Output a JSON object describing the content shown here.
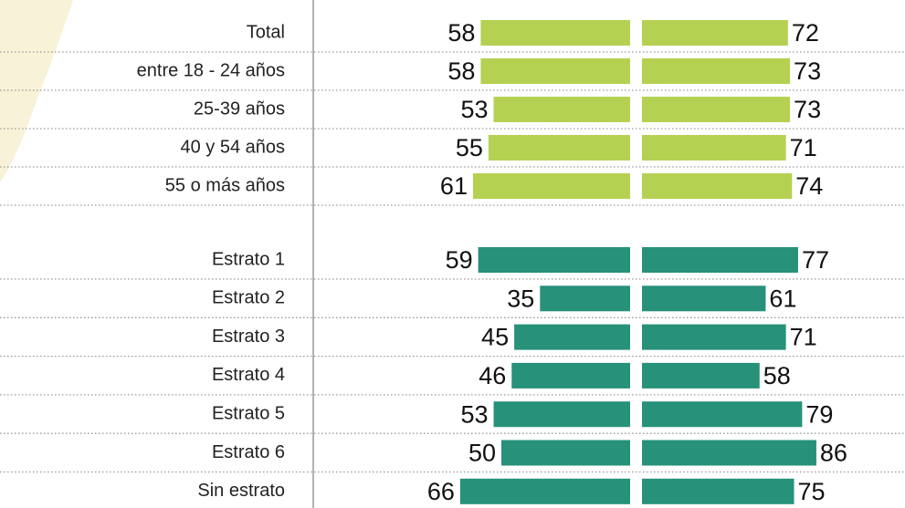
{
  "chart_data": [
    {
      "type": "paired-bar",
      "color": "#b5d152",
      "xlim": [
        0,
        100
      ],
      "categories": [
        "Total",
        "entre 18 - 24 años",
        "25-39 años",
        "40 y 54 años",
        "55 o más años"
      ],
      "series": [
        {
          "values": [
            58,
            58,
            53,
            55,
            61
          ]
        },
        {
          "values": [
            72,
            73,
            73,
            71,
            74
          ]
        }
      ]
    },
    {
      "type": "paired-bar",
      "color": "#27917a",
      "xlim": [
        0,
        100
      ],
      "categories": [
        "Estrato 1",
        "Estrato 2",
        "Estrato 3",
        "Estrato 4",
        "Estrato 5",
        "Estrato 6",
        "Sin estrato"
      ],
      "series": [
        {
          "values": [
            59,
            35,
            45,
            46,
            53,
            50,
            66
          ]
        },
        {
          "values": [
            77,
            61,
            71,
            58,
            79,
            86,
            75
          ]
        }
      ]
    }
  ]
}
